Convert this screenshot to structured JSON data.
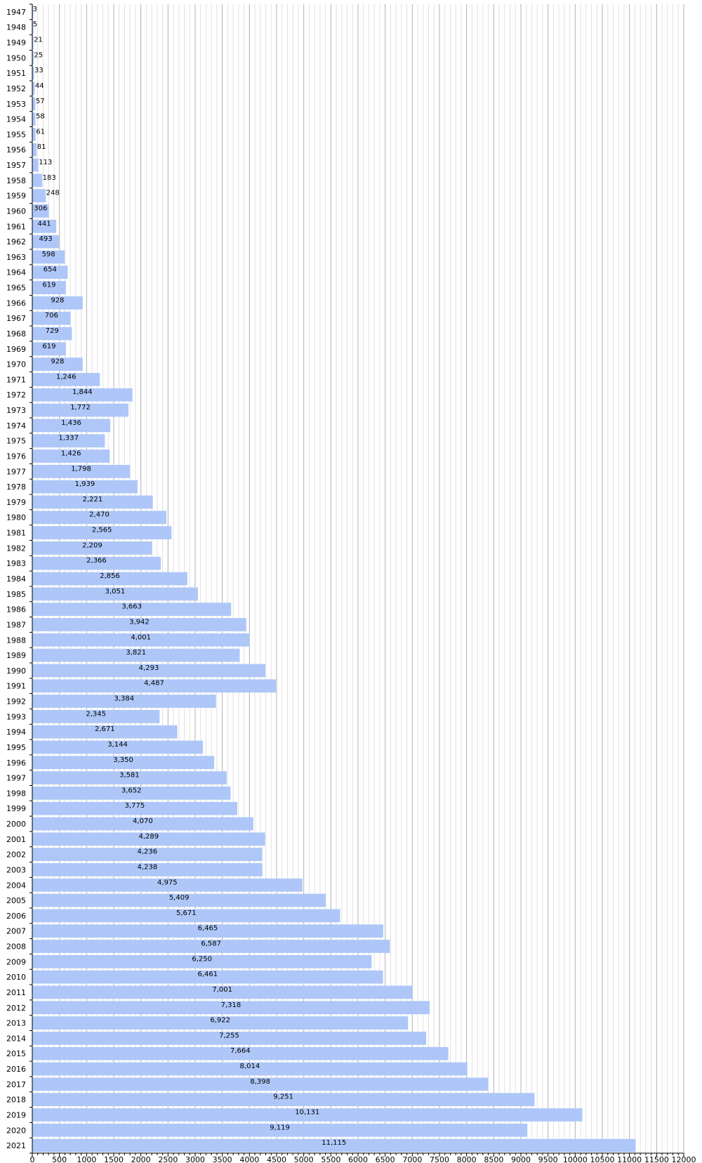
{
  "chart_data": {
    "type": "bar",
    "orientation": "horizontal",
    "title": "",
    "xlabel": "",
    "ylabel": "",
    "xlim": [
      0,
      12000
    ],
    "x_ticks": [
      0,
      500,
      1000,
      1500,
      2000,
      2500,
      3000,
      3500,
      4000,
      4500,
      5000,
      5500,
      6000,
      6500,
      7000,
      7500,
      8000,
      8500,
      9000,
      9500,
      10000,
      10500,
      11000,
      11500,
      12000
    ],
    "grid": true,
    "legend": "none",
    "bar_color": "#aec7f8",
    "categories": [
      "1947",
      "1948",
      "1949",
      "1950",
      "1951",
      "1952",
      "1953",
      "1954",
      "1955",
      "1956",
      "1957",
      "1958",
      "1959",
      "1960",
      "1961",
      "1962",
      "1963",
      "1964",
      "1965",
      "1966",
      "1967",
      "1968",
      "1969",
      "1970",
      "1971",
      "1972",
      "1973",
      "1974",
      "1975",
      "1976",
      "1977",
      "1978",
      "1979",
      "1980",
      "1981",
      "1982",
      "1983",
      "1984",
      "1985",
      "1986",
      "1987",
      "1988",
      "1989",
      "1990",
      "1991",
      "1992",
      "1993",
      "1994",
      "1995",
      "1996",
      "1997",
      "1998",
      "1999",
      "2000",
      "2001",
      "2002",
      "2003",
      "2004",
      "2005",
      "2006",
      "2007",
      "2008",
      "2009",
      "2010",
      "2011",
      "2012",
      "2013",
      "2014",
      "2015",
      "2016",
      "2017",
      "2018",
      "2019",
      "2020",
      "2021"
    ],
    "values": [
      3,
      5,
      21,
      25,
      33,
      44,
      57,
      58,
      61,
      81,
      113,
      183,
      248,
      306,
      441,
      493,
      598,
      654,
      619,
      928,
      706,
      729,
      619,
      928,
      1246,
      1844,
      1772,
      1436,
      1337,
      1426,
      1798,
      1939,
      2221,
      2470,
      2565,
      2209,
      2366,
      2856,
      3051,
      3663,
      3942,
      4001,
      3821,
      4293,
      4487,
      3384,
      2345,
      2671,
      3144,
      3350,
      3581,
      3652,
      3775,
      4070,
      4289,
      4236,
      4238,
      4975,
      5409,
      5671,
      6465,
      6587,
      6250,
      6461,
      7001,
      7318,
      6922,
      7255,
      7664,
      8014,
      8398,
      9251,
      10131,
      9119,
      11115
    ],
    "value_labels": [
      "3",
      "5",
      "21",
      "25",
      "33",
      "44",
      "57",
      "58",
      "61",
      "81",
      "113",
      "183",
      "248",
      "306",
      "441",
      "493",
      "598",
      "654",
      "619",
      "928",
      "706",
      "729",
      "619",
      "928",
      "1,246",
      "1,844",
      "1,772",
      "1,436",
      "1,337",
      "1,426",
      "1,798",
      "1,939",
      "2,221",
      "2,470",
      "2,565",
      "2,209",
      "2,366",
      "2,856",
      "3,051",
      "3,663",
      "3,942",
      "4,001",
      "3,821",
      "4,293",
      "4,487",
      "3,384",
      "2,345",
      "2,671",
      "3,144",
      "3,350",
      "3,581",
      "3,652",
      "3,775",
      "4,070",
      "4,289",
      "4,236",
      "4,238",
      "4,975",
      "5,409",
      "5,671",
      "6,465",
      "6,587",
      "6,250",
      "6,461",
      "7,001",
      "7,318",
      "6,922",
      "7,255",
      "7,664",
      "8,014",
      "8,398",
      "9,251",
      "10,131",
      "9,119",
      "11,115"
    ]
  }
}
